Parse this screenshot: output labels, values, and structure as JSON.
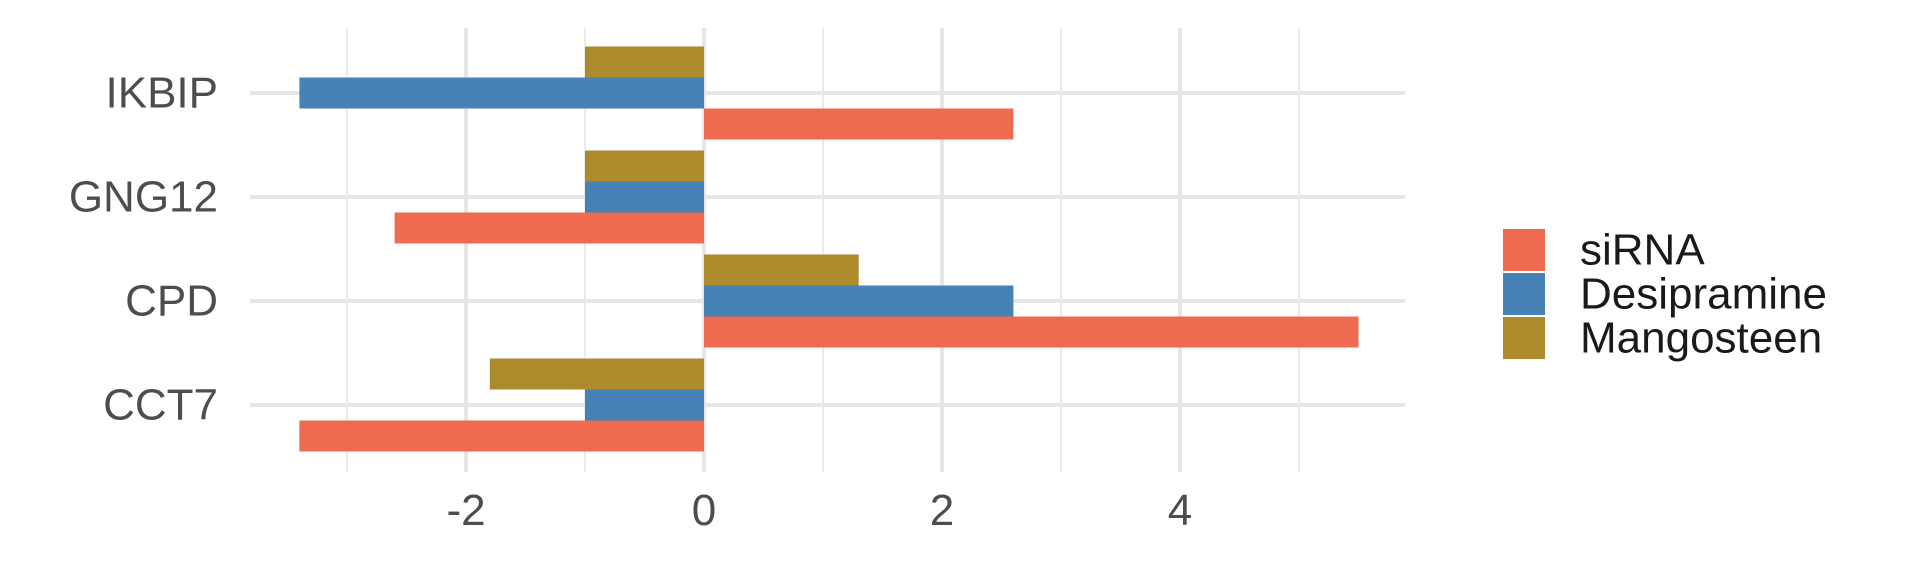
{
  "chart_data": {
    "type": "bar",
    "orientation": "horizontal",
    "categories": [
      "IKBIP",
      "GNG12",
      "CPD",
      "CCT7"
    ],
    "series": [
      {
        "name": "siRNA",
        "color": "#EE6A50",
        "values": [
          2.6,
          -2.6,
          5.5,
          -3.4
        ]
      },
      {
        "name": "Desipramine",
        "color": "#4682B4",
        "values": [
          -3.4,
          -1.0,
          2.6,
          -1.0
        ]
      },
      {
        "name": "Mangosteen",
        "color": "#AD8A2C",
        "values": [
          -1.0,
          -1.0,
          1.3,
          -1.8
        ]
      }
    ],
    "x_ticks": [
      -2,
      0,
      2,
      4
    ],
    "xlim": [
      -3.8,
      5.9
    ],
    "grid": true,
    "legend_position": "right",
    "title": "",
    "xlabel": "",
    "ylabel": ""
  }
}
